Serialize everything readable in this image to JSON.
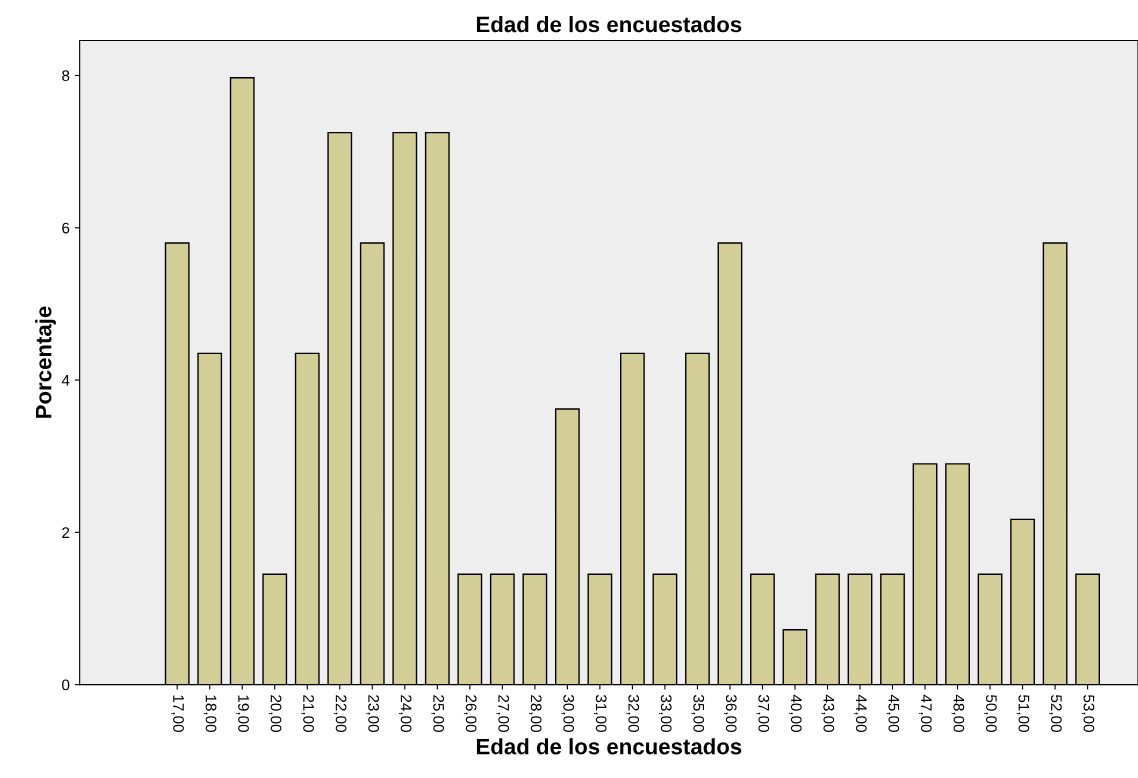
{
  "chart_data": {
    "type": "bar",
    "title": "Edad de los encuestados",
    "xlabel": "Edad de los encuestados",
    "ylabel": "Porcentaje",
    "categories": [
      "17,00",
      "18,00",
      "19,00",
      "20,00",
      "21,00",
      "22,00",
      "23,00",
      "24,00",
      "25,00",
      "26,00",
      "27,00",
      "28,00",
      "30,00",
      "31,00",
      "32,00",
      "33,00",
      "35,00",
      "36,00",
      "37,00",
      "40,00",
      "43,00",
      "44,00",
      "45,00",
      "47,00",
      "48,00",
      "50,00",
      "51,00",
      "52,00",
      "53,00"
    ],
    "values": [
      5.8,
      4.35,
      7.97,
      1.45,
      4.35,
      7.25,
      5.8,
      7.25,
      7.25,
      1.45,
      1.45,
      1.45,
      3.62,
      1.45,
      4.35,
      1.45,
      4.35,
      5.8,
      1.45,
      0.72,
      1.45,
      1.45,
      1.45,
      2.9,
      2.9,
      1.45,
      2.17,
      5.8,
      1.45
    ],
    "color": "#d3ce97",
    "ylim": [
      0,
      8.46
    ],
    "yticks": [
      0,
      2,
      4,
      6,
      8
    ],
    "grid": false,
    "legend": false
  }
}
